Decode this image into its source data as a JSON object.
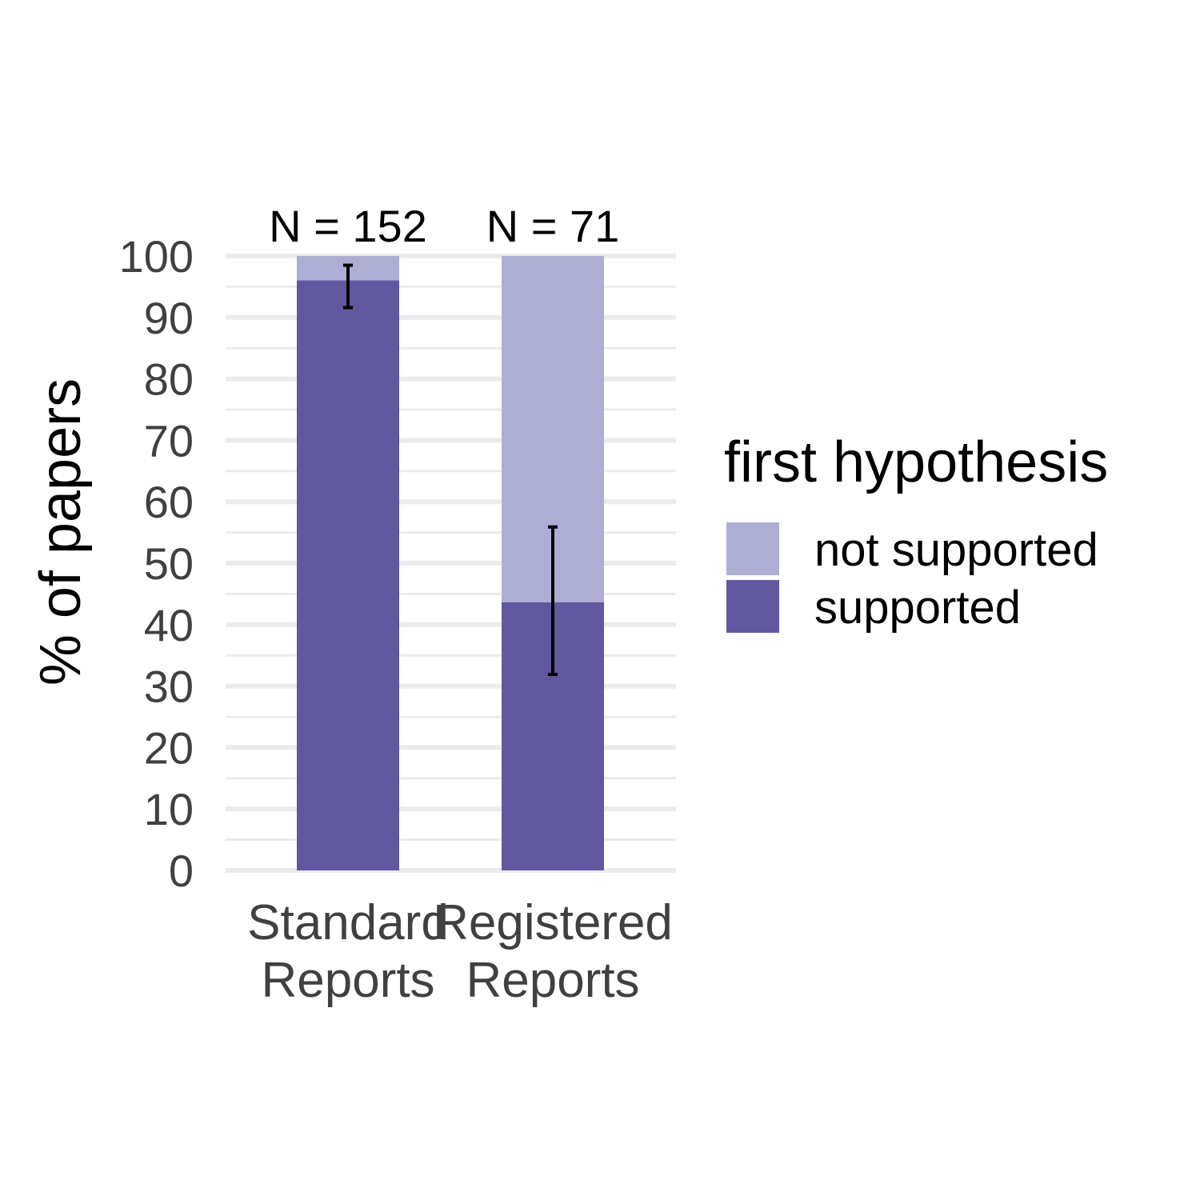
{
  "chart_data": {
    "type": "bar",
    "stacked": true,
    "categories": [
      [
        "Standard",
        "Reports"
      ],
      [
        "Registered",
        "Reports"
      ]
    ],
    "series": [
      {
        "name": "supported",
        "values": [
          96.05,
          43.66
        ],
        "color": "#61589f"
      },
      {
        "name": "not supported",
        "values": [
          3.95,
          56.34
        ],
        "color": "#aeaed4"
      }
    ],
    "error_bars": [
      {
        "category": 0,
        "low": 91.6,
        "high": 98.5
      },
      {
        "category": 1,
        "low": 31.9,
        "high": 55.9
      }
    ],
    "n_labels": [
      "N = 152",
      "N = 71"
    ],
    "ylabel": "% of papers",
    "ylim": [
      0,
      100
    ],
    "yticks": [
      "0",
      "10",
      "20",
      "30",
      "40",
      "50",
      "60",
      "70",
      "80",
      "90",
      "100"
    ],
    "grid": true,
    "legend": {
      "title": "first hypothesis",
      "position": "right",
      "entries": [
        {
          "label": "not supported",
          "color": "#aeaed4"
        },
        {
          "label": "supported",
          "color": "#61589f"
        }
      ]
    }
  }
}
